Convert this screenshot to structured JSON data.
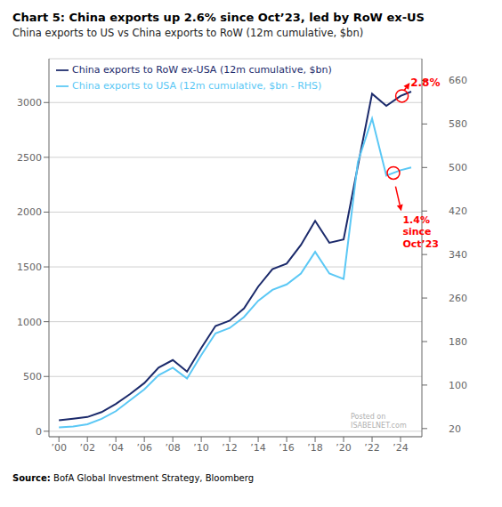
{
  "chart_data": {
    "type": "line",
    "title": "Chart 5: China exports up 2.6% since Oct’23, led by RoW ex-US",
    "subtitle": "China exports to US vs China exports to RoW (12m cumulative, $bn)",
    "source": "Source: BofA Global Investment Strategy, Bloomberg",
    "x": [
      2000,
      2001,
      2002,
      2003,
      2004,
      2005,
      2006,
      2007,
      2008,
      2009,
      2010,
      2011,
      2012,
      2013,
      2014,
      2015,
      2016,
      2017,
      2018,
      2019,
      2020,
      2021,
      2022,
      2023,
      2024,
      2024.75
    ],
    "series": [
      {
        "name": "China exports to RoW ex-USA (12m cumulative, $bn)",
        "color": "#1b2a6b",
        "axis": "y",
        "values": [
          100,
          115,
          130,
          175,
          250,
          340,
          440,
          580,
          650,
          545,
          760,
          960,
          1010,
          1120,
          1320,
          1480,
          1530,
          1700,
          1920,
          1720,
          1750,
          2420,
          3080,
          2970,
          3060,
          3100
        ]
      },
      {
        "name": "China exports to USA (12m cumulative, $bn - RHS)",
        "color": "#5bc8f5",
        "axis": "y2",
        "values": [
          22,
          24,
          28,
          38,
          52,
          72,
          92,
          118,
          132,
          112,
          155,
          195,
          205,
          225,
          255,
          275,
          285,
          305,
          345,
          305,
          295,
          510,
          590,
          485,
          495,
          500
        ]
      }
    ],
    "xlim": [
      1999.3,
      2025.5
    ],
    "xticks": [
      {
        "value": 2000,
        "label": "’00"
      },
      {
        "value": 2002,
        "label": "’02"
      },
      {
        "value": 2004,
        "label": "’04"
      },
      {
        "value": 2006,
        "label": "’06"
      },
      {
        "value": 2008,
        "label": "’08"
      },
      {
        "value": 2010,
        "label": "’10"
      },
      {
        "value": 2012,
        "label": "’12"
      },
      {
        "value": 2014,
        "label": "’14"
      },
      {
        "value": 2016,
        "label": "’16"
      },
      {
        "value": 2018,
        "label": "’18"
      },
      {
        "value": 2020,
        "label": "’20"
      },
      {
        "value": 2022,
        "label": "’22"
      },
      {
        "value": 2024,
        "label": "’24"
      }
    ],
    "ylim": [
      -50,
      3400
    ],
    "yticks": [
      0,
      500,
      1000,
      1500,
      2000,
      2500,
      3000
    ],
    "y2lim": [
      5,
      700
    ],
    "y2ticks": [
      20,
      100,
      180,
      260,
      340,
      420,
      500,
      580,
      660
    ],
    "grid": true,
    "legend": "upper left",
    "annotations": [
      {
        "text": "2.8%",
        "x": 2024.7,
        "y": 3180,
        "axis": "y",
        "color": "red",
        "circle": {
          "x": 2024.1,
          "y": 3060
        },
        "arrow": {
          "from": [
            2024.25,
            3110
          ],
          "to": [
            2024.65,
            3180
          ]
        }
      },
      {
        "text": "1.4%\nsince\nOct’23",
        "x": 2024.15,
        "y": 415,
        "axis": "y2",
        "color": "red",
        "circle": {
          "x": 2023.5,
          "y": 490
        },
        "arrow": {
          "from": [
            2023.65,
            465
          ],
          "to": [
            2024.05,
            420
          ]
        }
      },
      {
        "text": "Posted on\nISABELNET.com",
        "x": 2020.5,
        "y": 18,
        "axis": "y"
      }
    ]
  }
}
